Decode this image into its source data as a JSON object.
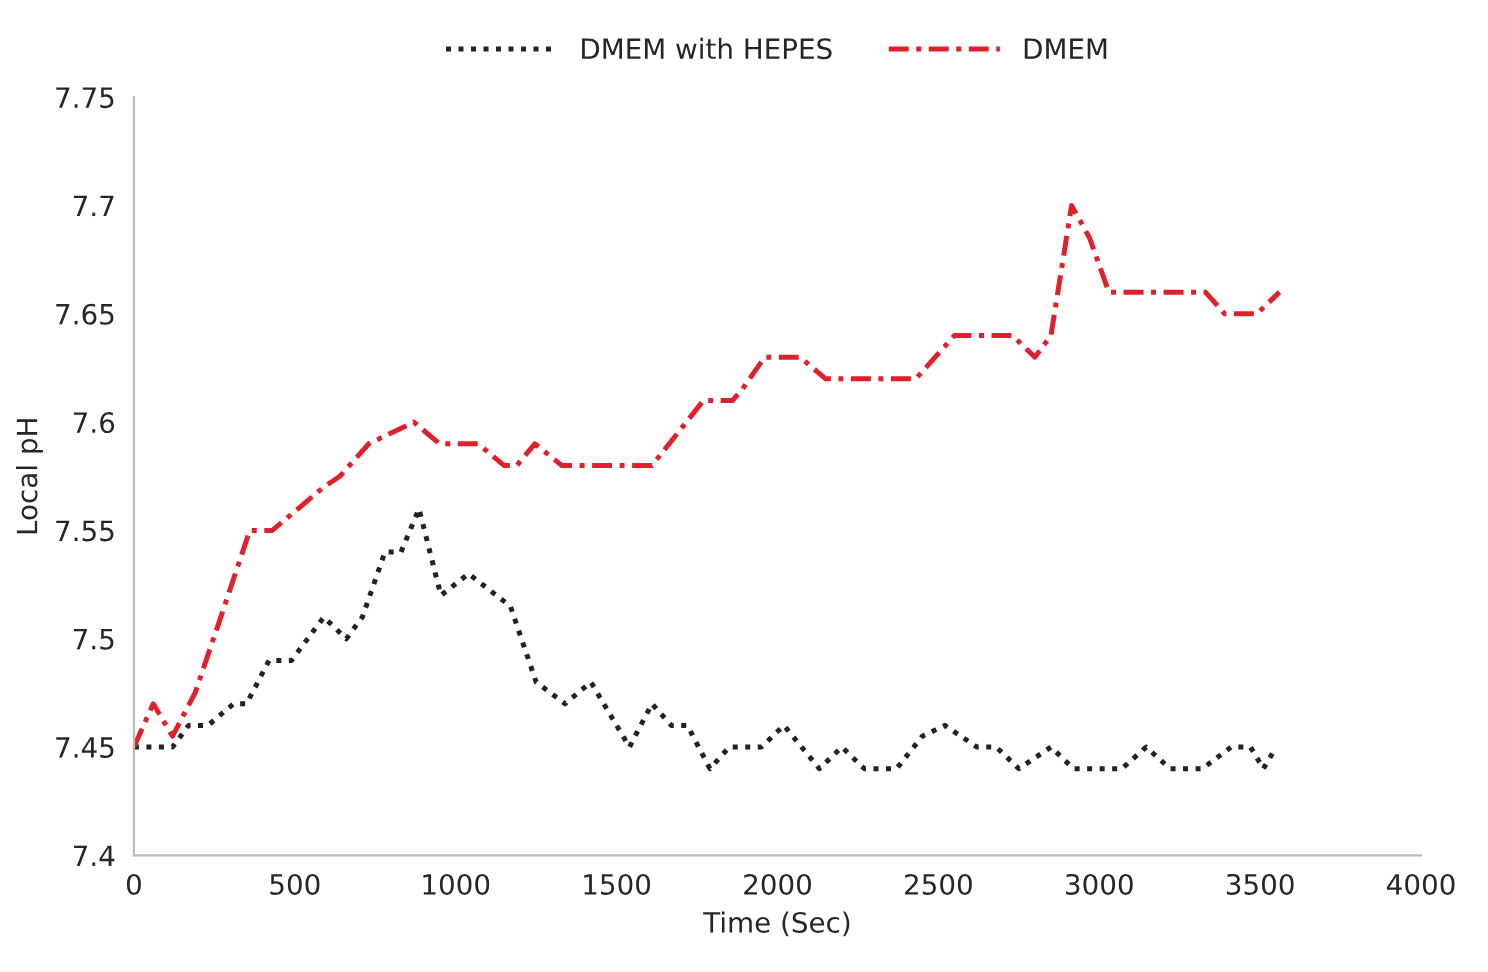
{
  "chart_data": {
    "type": "line",
    "xlabel": "Time (Sec)",
    "ylabel": "Local pH",
    "xlim": [
      0,
      4000
    ],
    "xticks": [
      0,
      500,
      1000,
      1500,
      2000,
      2500,
      3000,
      3500,
      4000
    ],
    "ylim": [
      7.4,
      7.75
    ],
    "yticks": [
      7.4,
      7.45,
      7.5,
      7.55,
      7.6,
      7.65,
      7.7,
      7.75
    ],
    "grid": false,
    "legend": "top",
    "marker": "none",
    "series": [
      {
        "name": "DMEM with HEPES",
        "color": "#222222",
        "line_style": "dotted",
        "x": [
          0,
          120,
          170,
          230,
          310,
          350,
          420,
          490,
          590,
          660,
          710,
          780,
          830,
          886,
          954,
          1040,
          1170,
          1250,
          1340,
          1420,
          1540,
          1610,
          1670,
          1720,
          1790,
          1850,
          1950,
          2020,
          2130,
          2200,
          2270,
          2370,
          2450,
          2520,
          2620,
          2680,
          2750,
          2850,
          2920,
          3070,
          3146,
          3220,
          3320,
          3410,
          3470,
          3510,
          3550
        ],
        "values": [
          7.45,
          7.45,
          7.46,
          7.46,
          7.47,
          7.47,
          7.49,
          7.49,
          7.51,
          7.5,
          7.51,
          7.54,
          7.54,
          7.56,
          7.52,
          7.53,
          7.515,
          7.48,
          7.47,
          7.48,
          7.45,
          7.47,
          7.46,
          7.46,
          7.44,
          7.45,
          7.45,
          7.46,
          7.44,
          7.45,
          7.44,
          7.44,
          7.455,
          7.46,
          7.45,
          7.45,
          7.44,
          7.45,
          7.44,
          7.44,
          7.45,
          7.44,
          7.44,
          7.45,
          7.45,
          7.44,
          7.45
        ]
      },
      {
        "name": "DMEM",
        "color": "#e0202a",
        "line_style": "dashdot",
        "x": [
          0,
          60,
          120,
          190,
          270,
          360,
          430,
          590,
          640,
          730,
          870,
          950,
          1070,
          1150,
          1190,
          1246,
          1330,
          1610,
          1770,
          1860,
          1890,
          1960,
          2070,
          2150,
          2430,
          2550,
          2730,
          2800,
          2850,
          2914,
          2970,
          3030,
          3330,
          3390,
          3490,
          3560
        ],
        "values": [
          7.45,
          7.47,
          7.455,
          7.475,
          7.51,
          7.55,
          7.55,
          7.57,
          7.575,
          7.59,
          7.6,
          7.59,
          7.59,
          7.58,
          7.58,
          7.59,
          7.58,
          7.58,
          7.61,
          7.61,
          7.615,
          7.63,
          7.63,
          7.62,
          7.62,
          7.64,
          7.64,
          7.63,
          7.64,
          7.7,
          7.685,
          7.66,
          7.66,
          7.65,
          7.65,
          7.66
        ]
      }
    ]
  }
}
